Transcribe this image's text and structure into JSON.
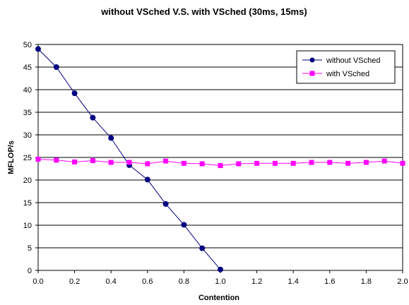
{
  "chart_data": {
    "type": "line",
    "title": "without VSched V.S. with VSched (30ms, 15ms)",
    "xlabel": "Contention",
    "ylabel": "MFLOP/s",
    "xlim": [
      0,
      2.0
    ],
    "ylim": [
      0,
      50
    ],
    "x_ticks": [
      "0.0",
      "0.2",
      "0.4",
      "0.6",
      "0.8",
      "1.0",
      "1.2",
      "1.4",
      "1.6",
      "1.8",
      "2.0"
    ],
    "y_ticks": [
      "0",
      "5",
      "10",
      "15",
      "20",
      "25",
      "30",
      "35",
      "40",
      "45",
      "50"
    ],
    "grid": "horizontal",
    "legend_position": "top-right",
    "series": [
      {
        "name": "without VSched",
        "color": "#000080",
        "marker": "circle",
        "x": [
          0.0,
          0.1,
          0.2,
          0.3,
          0.4,
          0.5,
          0.6,
          0.7,
          0.8,
          0.9,
          1.0
        ],
        "y": [
          49.0,
          45.0,
          39.2,
          33.8,
          29.3,
          23.3,
          20.1,
          14.7,
          10.1,
          4.9,
          0.2
        ]
      },
      {
        "name": "with VSched",
        "color": "#ff00ff",
        "marker": "square",
        "x": [
          0.0,
          0.1,
          0.2,
          0.3,
          0.4,
          0.5,
          0.6,
          0.7,
          0.8,
          0.9,
          1.0,
          1.1,
          1.2,
          1.3,
          1.4,
          1.5,
          1.6,
          1.7,
          1.8,
          1.9,
          2.0
        ],
        "y": [
          24.6,
          24.4,
          24.0,
          24.3,
          23.9,
          23.9,
          23.6,
          24.2,
          23.7,
          23.6,
          23.2,
          23.6,
          23.7,
          23.7,
          23.7,
          23.9,
          23.9,
          23.7,
          23.9,
          24.2,
          23.7
        ]
      }
    ]
  }
}
